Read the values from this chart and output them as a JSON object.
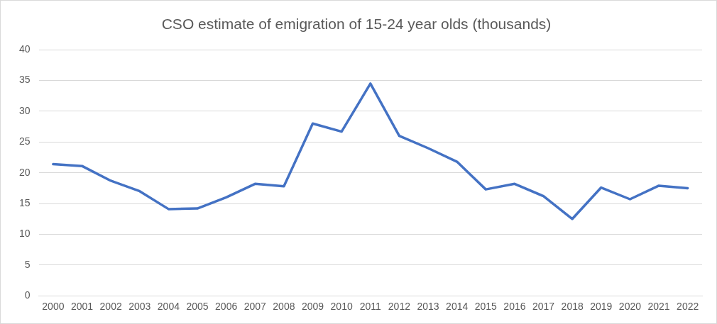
{
  "chart_data": {
    "type": "line",
    "title": "CSO estimate of emigration of 15-24 year olds (thousands)",
    "categories": [
      "2000",
      "2001",
      "2002",
      "2003",
      "2004",
      "2005",
      "2006",
      "2007",
      "2008",
      "2009",
      "2010",
      "2011",
      "2012",
      "2013",
      "2014",
      "2015",
      "2016",
      "2017",
      "2018",
      "2019",
      "2020",
      "2021",
      "2022"
    ],
    "series": [
      {
        "color": "#4472c4",
        "values": [
          21.4,
          21.1,
          18.7,
          17.0,
          14.1,
          14.2,
          16.0,
          18.2,
          17.8,
          28.0,
          26.7,
          34.5,
          26.0,
          24.0,
          21.8,
          17.3,
          18.2,
          16.2,
          12.5,
          17.6,
          15.7,
          17.9,
          17.5
        ]
      }
    ],
    "ylim": [
      0,
      40
    ],
    "yticks": [
      0,
      5,
      10,
      15,
      20,
      25,
      30,
      35,
      40
    ],
    "grid": "y",
    "legend": false,
    "marker": "none",
    "line_style": "solid"
  }
}
